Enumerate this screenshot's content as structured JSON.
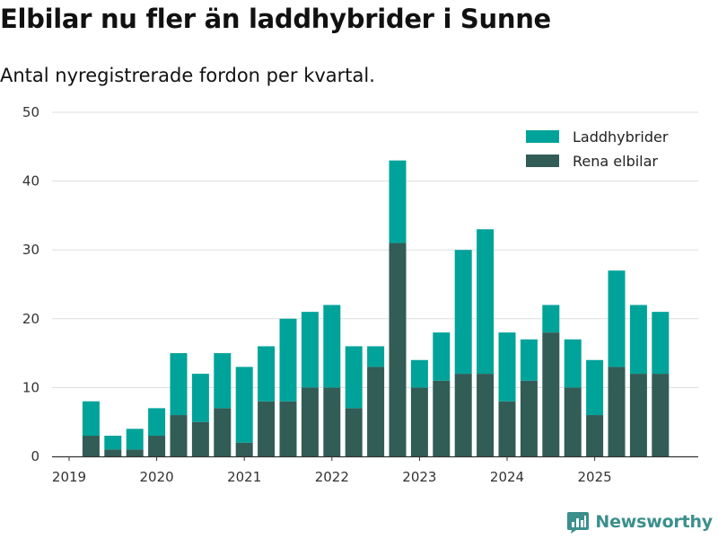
{
  "title": "Elbilar nu fler än laddhybrider i Sunne",
  "subtitle": "Antal nyregistrerade fordon per kvartal.",
  "chart_data": {
    "type": "bar",
    "stacked": true,
    "ylim": [
      0,
      50
    ],
    "yticks": [
      0,
      10,
      20,
      30,
      40,
      50
    ],
    "year_labels": [
      "2019",
      "2020",
      "2021",
      "2022",
      "2023",
      "2024",
      "2025"
    ],
    "categories": [
      "2019 Q1",
      "2019 Q2",
      "2019 Q3",
      "2019 Q4",
      "2020 Q1",
      "2020 Q2",
      "2020 Q3",
      "2020 Q4",
      "2021 Q1",
      "2021 Q2",
      "2021 Q3",
      "2021 Q4",
      "2022 Q1",
      "2022 Q2",
      "2022 Q3",
      "2022 Q4",
      "2023 Q1",
      "2023 Q2",
      "2023 Q3",
      "2023 Q4",
      "2024 Q1",
      "2024 Q2",
      "2024 Q3",
      "2024 Q4",
      "2025 Q1",
      "2025 Q2",
      "2025 Q3",
      "2025 Q4"
    ],
    "series": [
      {
        "name": "Rena elbilar",
        "color": "#325c56",
        "values": [
          0,
          3,
          1,
          1,
          3,
          6,
          5,
          7,
          2,
          8,
          8,
          10,
          10,
          7,
          13,
          31,
          10,
          11,
          12,
          12,
          8,
          11,
          18,
          10,
          6,
          13,
          12,
          12
        ]
      },
      {
        "name": "Laddhybrider",
        "color": "#00a39a",
        "values": [
          0,
          5,
          2,
          3,
          4,
          9,
          7,
          8,
          11,
          8,
          12,
          11,
          12,
          9,
          3,
          12,
          4,
          7,
          18,
          21,
          10,
          6,
          4,
          7,
          8,
          14,
          10,
          9
        ]
      }
    ],
    "legend": [
      {
        "label": "Laddhybrider",
        "color": "#00a39a"
      },
      {
        "label": "Rena elbilar",
        "color": "#325c56"
      }
    ],
    "legend_position": "top-right"
  },
  "brand": {
    "name": "Newsworthy",
    "color": "#3b8f8c"
  }
}
